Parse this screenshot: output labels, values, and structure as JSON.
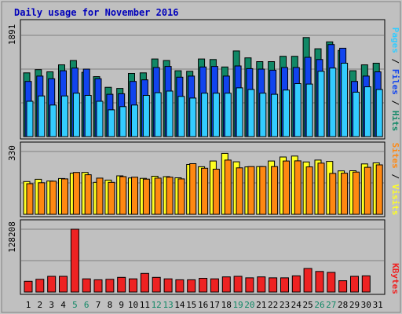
{
  "chart_data": {
    "type": "bar",
    "title": "Daily usage for November 2016",
    "categories": [
      "1",
      "2",
      "3",
      "4",
      "5",
      "6",
      "7",
      "8",
      "9",
      "10",
      "11",
      "12",
      "13",
      "14",
      "15",
      "16",
      "17",
      "18",
      "19",
      "20",
      "21",
      "22",
      "23",
      "24",
      "25",
      "26",
      "27",
      "28",
      "29",
      "30",
      "31"
    ],
    "weekend_days": [
      "5",
      "6",
      "12",
      "13",
      "19",
      "20",
      "26",
      "27"
    ],
    "panels": [
      {
        "name": "hits-files-pages",
        "ymax_label": "1891",
        "ylim": [
          0,
          1891
        ],
        "side_labels": [
          "Pages",
          "Files",
          "Hits"
        ],
        "series": [
          {
            "name": "Hits",
            "values": [
              1190,
              1250,
              1210,
              1340,
              1420,
              1200,
              1120,
              920,
              900,
              1180,
              1190,
              1450,
              1420,
              1230,
              1220,
              1450,
              1440,
              1300,
              1600,
              1470,
              1400,
              1400,
              1500,
              1500,
              1850,
              1640,
              1770,
              1610,
              1230,
              1340,
              1370
            ]
          },
          {
            "name": "Files",
            "values": [
              1030,
              1130,
              1080,
              1230,
              1280,
              1260,
              1080,
              790,
              800,
              1030,
              1060,
              1290,
              1310,
              1110,
              1130,
              1300,
              1310,
              1130,
              1320,
              1270,
              1260,
              1240,
              1290,
              1290,
              1480,
              1440,
              1720,
              1650,
              1030,
              1130,
              1210
            ]
          },
          {
            "name": "Pages",
            "values": [
              660,
              760,
              590,
              760,
              810,
              770,
              660,
              500,
              560,
              590,
              770,
              820,
              850,
              750,
              720,
              810,
              810,
              810,
              910,
              880,
              810,
              790,
              870,
              990,
              980,
              1220,
              1280,
              1370,
              830,
              930,
              880
            ]
          }
        ]
      },
      {
        "name": "sites-visits",
        "ymax_label": "330",
        "ylim": [
          0,
          330
        ],
        "side_labels": [
          "Sites",
          "Visits"
        ],
        "series": [
          {
            "name": "Visits",
            "values": [
              172,
              184,
              175,
              188,
              216,
              220,
              168,
              180,
              202,
              191,
              189,
              200,
              198,
              192,
              262,
              250,
              280,
              320,
              276,
              249,
              251,
              280,
              301,
              306,
              275,
              285,
              278,
              228,
              229,
              265,
              270
            ]
          },
          {
            "name": "Sites",
            "values": [
              161,
              166,
              174,
              186,
              220,
              208,
              190,
              168,
              198,
              195,
              185,
              190,
              195,
              186,
              266,
              242,
              237,
              285,
              244,
              251,
              251,
              251,
              280,
              281,
              249,
              269,
              215,
              216,
              222,
              247,
              260
            ]
          }
        ]
      },
      {
        "name": "kbytes",
        "ymax_label": "128208",
        "ylim": [
          0,
          128208
        ],
        "side_labels": [
          "KBytes"
        ],
        "series": [
          {
            "name": "KBytes",
            "values": [
              22000,
              26000,
              32000,
              32000,
              128208,
              27000,
              25000,
              26000,
              30000,
              27000,
              38000,
              30000,
              27000,
              25000,
              25000,
              28000,
              27000,
              31000,
              32000,
              29000,
              31000,
              29000,
              29000,
              33000,
              48000,
              42000,
              40000,
              23000,
              32000,
              33000,
              0
            ]
          }
        ]
      }
    ],
    "colors": {
      "title": "#0000bb",
      "hits": "#118866",
      "files": "#1144ee",
      "pages": "#33ccff",
      "visits": "#ffff22",
      "sites": "#ff8811",
      "kbytes": "#ee2222",
      "panel_bg": "#c0c0c0",
      "weekday_label": "#000000",
      "weekend_label": "#118866"
    }
  }
}
